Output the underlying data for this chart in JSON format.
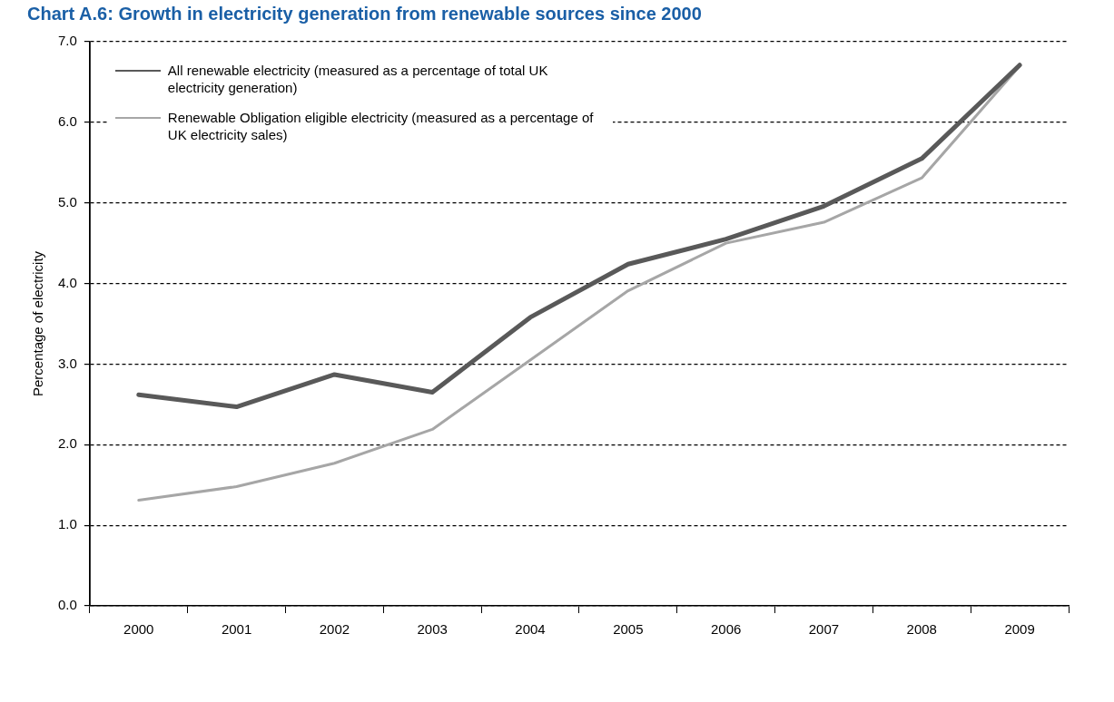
{
  "chart_data": {
    "type": "line",
    "title": "Chart A.6: Growth in electricity generation from renewable sources since 2000",
    "ylabel": "Percentage of electricity",
    "categories": [
      "2000",
      "2001",
      "2002",
      "2003",
      "2004",
      "2005",
      "2006",
      "2007",
      "2008",
      "2009"
    ],
    "series": [
      {
        "name": "All renewable electricity (measured as a percentage of total UK electricity generation)",
        "color": "#595959",
        "values": [
          2.62,
          2.47,
          2.87,
          2.65,
          3.58,
          4.24,
          4.55,
          4.96,
          5.55,
          6.71
        ]
      },
      {
        "name": "Renewable Obligation eligible electricity (measured as a percentage of UK electricity sales)",
        "color": "#a6a6a6",
        "values": [
          1.31,
          1.48,
          1.77,
          2.19,
          3.05,
          3.91,
          4.5,
          4.76,
          5.31,
          6.7
        ]
      }
    ],
    "ylim": [
      0,
      7
    ],
    "yticks": [
      {
        "value": 0,
        "label": "0.0"
      },
      {
        "value": 1,
        "label": "1.0"
      },
      {
        "value": 2,
        "label": "2.0"
      },
      {
        "value": 3,
        "label": "3.0"
      },
      {
        "value": 4,
        "label": "4.0"
      },
      {
        "value": 5,
        "label": "5.0"
      },
      {
        "value": 6,
        "label": "6.0"
      },
      {
        "value": 7,
        "label": "7.0"
      }
    ],
    "grid": "y",
    "legend": "top left",
    "marker": "none",
    "line_style": "solid"
  }
}
